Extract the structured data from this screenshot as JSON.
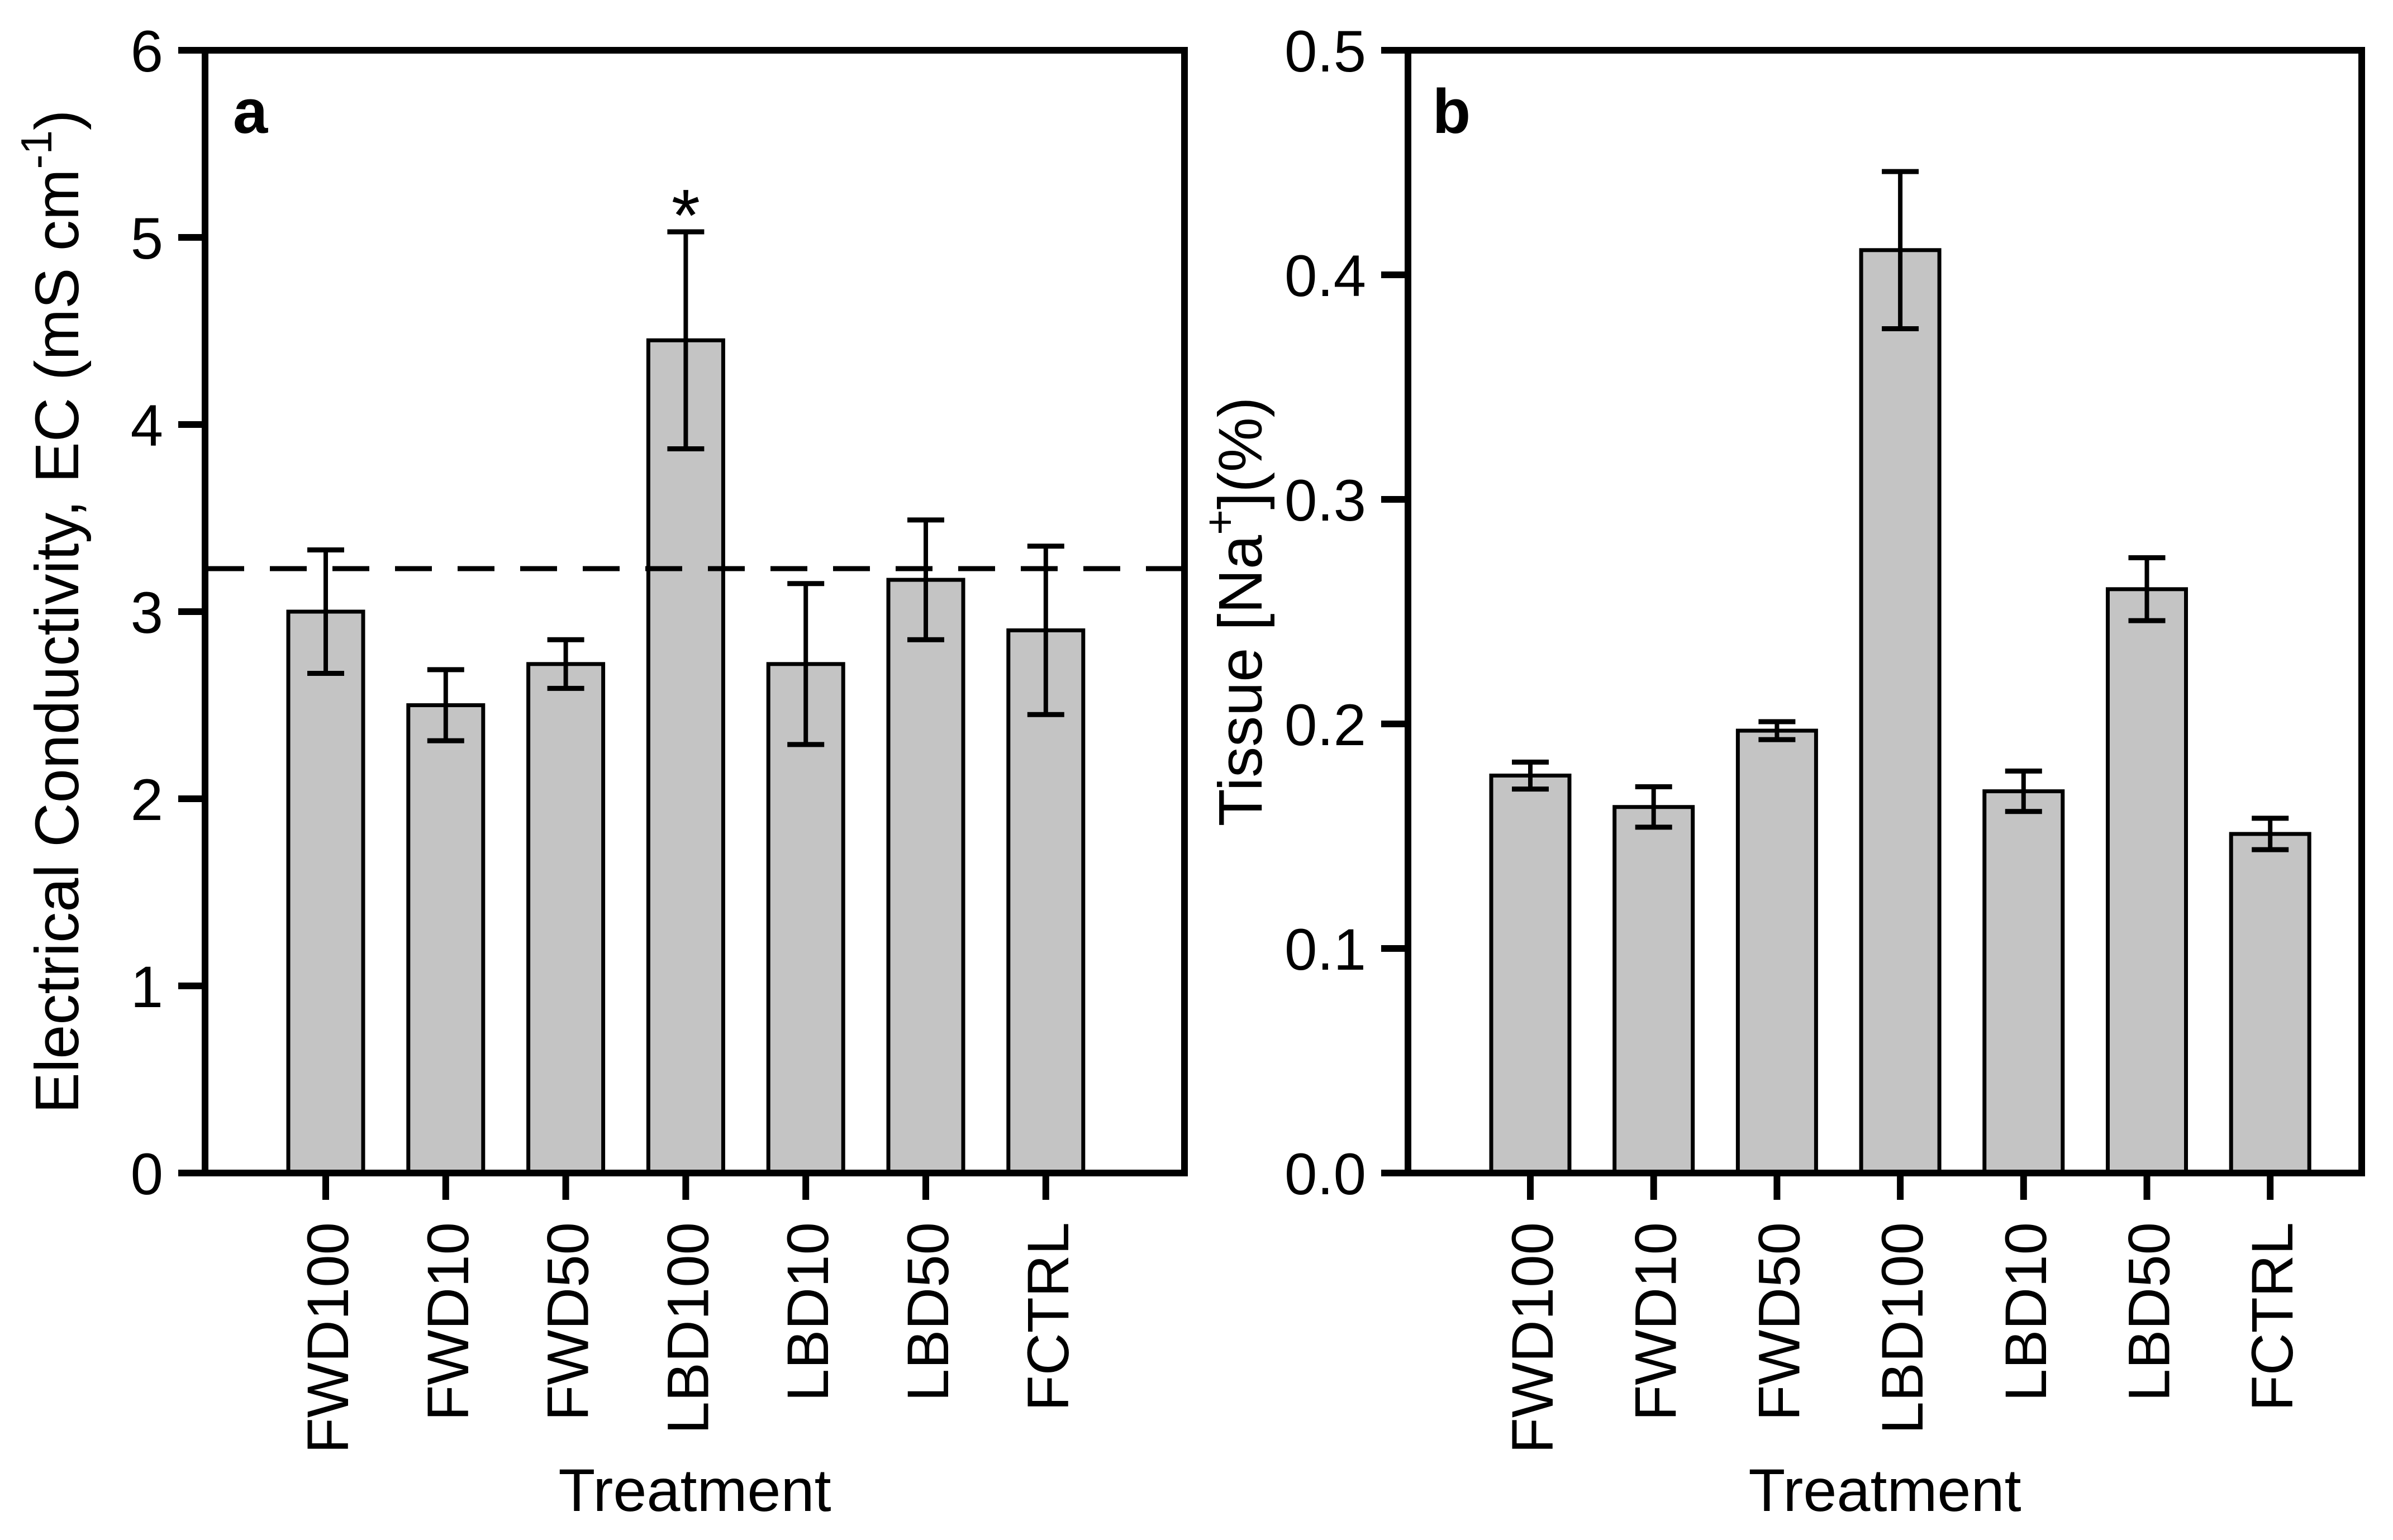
{
  "figure": {
    "background": "#ffffff",
    "bar_fill": "#c4c4c4",
    "bar_stroke": "#000000",
    "axis_color": "#000000",
    "text_color": "#000000"
  },
  "chart_data": [
    {
      "type": "bar",
      "panel": "a",
      "xlabel": "Treatment",
      "ylabel": "Electrical Conductivity, EC (mS cm⁻¹)",
      "ylabel_parts": [
        {
          "text": "Electrical Conductivity, EC (mS cm"
        },
        {
          "text": "-1",
          "sup": true
        },
        {
          "text": ")"
        }
      ],
      "categories": [
        "FWD100",
        "FWD10",
        "FWD50",
        "LBD100",
        "LBD10",
        "LBD50",
        "FCTRL"
      ],
      "values": [
        3.0,
        2.5,
        2.72,
        4.45,
        2.72,
        3.17,
        2.9
      ],
      "errors": [
        0.33,
        0.19,
        0.13,
        0.58,
        0.43,
        0.32,
        0.45
      ],
      "ylim": [
        0,
        6
      ],
      "yticks": [
        0,
        1,
        2,
        3,
        4,
        5,
        6
      ],
      "ytick_labels": [
        "0",
        "1",
        "2",
        "3",
        "4",
        "5",
        "6"
      ],
      "reference_line": 3.23,
      "reference_line_style": "dashed",
      "annotations": [
        {
          "text": "*",
          "category": "LBD100"
        }
      ],
      "grid": false,
      "legend": null
    },
    {
      "type": "bar",
      "panel": "b",
      "xlabel": "Treatment",
      "ylabel": "Tissue [Na⁺](%)",
      "ylabel_parts": [
        {
          "text": "Tissue [Na"
        },
        {
          "text": "+",
          "sup": true
        },
        {
          "text": "](%)"
        }
      ],
      "categories": [
        "FWD100",
        "FWD10",
        "FWD50",
        "LBD100",
        "LBD10",
        "LBD50",
        "FCTRL"
      ],
      "values": [
        0.177,
        0.163,
        0.197,
        0.411,
        0.17,
        0.26,
        0.151
      ],
      "errors": [
        0.006,
        0.009,
        0.004,
        0.035,
        0.009,
        0.014,
        0.007
      ],
      "ylim": [
        0,
        0.5
      ],
      "yticks": [
        0.0,
        0.1,
        0.2,
        0.3,
        0.4,
        0.5
      ],
      "ytick_labels": [
        "0.0",
        "0.1",
        "0.2",
        "0.3",
        "0.4",
        "0.5"
      ],
      "reference_line": null,
      "reference_line_style": null,
      "annotations": [],
      "grid": false,
      "legend": null
    }
  ]
}
